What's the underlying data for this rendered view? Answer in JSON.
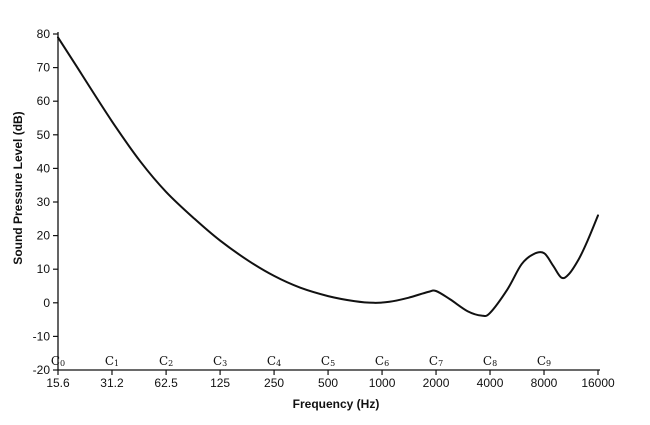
{
  "chart_data": {
    "type": "line",
    "xlabel": "Frequency (Hz)",
    "ylabel": "Sound Pressure Level (dB)",
    "x_scale": "log",
    "xlim": [
      15.6,
      16000
    ],
    "ylim": [
      -20,
      80
    ],
    "x_ticks": [
      15.6,
      31.2,
      62.5,
      125,
      250,
      500,
      1000,
      2000,
      4000,
      8000,
      16000
    ],
    "x_tick_labels": [
      "15.6",
      "31.2",
      "62.5",
      "125",
      "250",
      "500",
      "1000",
      "2000",
      "4000",
      "8000",
      "16000"
    ],
    "y_ticks": [
      -20,
      -10,
      0,
      10,
      20,
      30,
      40,
      50,
      60,
      70,
      80
    ],
    "note_labels": [
      {
        "letter": "C",
        "sub": "0",
        "x": 15.6
      },
      {
        "letter": "C",
        "sub": "1",
        "x": 31.2
      },
      {
        "letter": "C",
        "sub": "2",
        "x": 62.5
      },
      {
        "letter": "C",
        "sub": "3",
        "x": 125
      },
      {
        "letter": "C",
        "sub": "4",
        "x": 250
      },
      {
        "letter": "C",
        "sub": "5",
        "x": 500
      },
      {
        "letter": "C",
        "sub": "6",
        "x": 1000
      },
      {
        "letter": "C",
        "sub": "7",
        "x": 2000
      },
      {
        "letter": "C",
        "sub": "8",
        "x": 4000
      },
      {
        "letter": "C",
        "sub": "9",
        "x": 8000
      }
    ],
    "series": [
      {
        "x": [
          15.6,
          20,
          31.2,
          45,
          62.5,
          90,
          125,
          180,
          250,
          350,
          500,
          700,
          900,
          1100,
          1400,
          1800,
          2000,
          2400,
          3000,
          3600,
          4000,
          5000,
          6000,
          7000,
          8000,
          9000,
          10000,
          11000,
          12500,
          14000,
          16000
        ],
        "y": [
          79,
          70,
          54,
          42,
          33,
          25,
          18.5,
          12.5,
          8,
          4.5,
          2,
          0.5,
          0,
          0.3,
          1.5,
          3.2,
          3.5,
          1,
          -2.5,
          -3.8,
          -3,
          4,
          11.5,
          14.5,
          14.8,
          11,
          7.5,
          8.5,
          13,
          18.5,
          26
        ]
      }
    ]
  }
}
